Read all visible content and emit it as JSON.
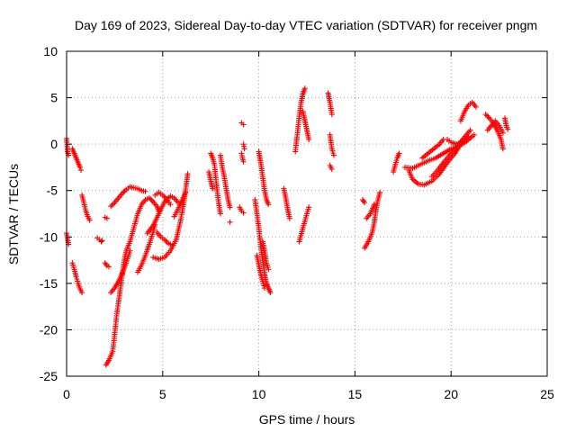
{
  "chart_data": {
    "type": "scatter",
    "title": "Day 169 of 2023, Sidereal Day-to-day VTEC variation (SDTVAR) for receiver pngm",
    "xlabel": "GPS time / hours",
    "ylabel": "SDTVAR / TECUs",
    "xlim": [
      0,
      25
    ],
    "ylim": [
      -25,
      10
    ],
    "x_ticks": [
      "0",
      "5",
      "10",
      "15",
      "20",
      "25"
    ],
    "y_ticks": [
      "10",
      "5",
      "0",
      "-5",
      "-10",
      "-15",
      "-20",
      "-25"
    ],
    "grid": true,
    "marker": "plus",
    "color": "#ff0000",
    "tracks": [
      [
        [
          0.0,
          0.6
        ],
        [
          0.05,
          -0.8
        ],
        [
          0.1,
          -1.2
        ]
      ],
      [
        [
          0.0,
          -9.6
        ],
        [
          0.05,
          -10.2
        ],
        [
          0.1,
          -10.8
        ]
      ],
      [
        [
          0.3,
          -0.5
        ],
        [
          0.4,
          -1.0
        ],
        [
          0.5,
          -1.5
        ],
        [
          0.6,
          -2.0
        ],
        [
          0.7,
          -2.5
        ],
        [
          0.75,
          -2.8
        ]
      ],
      [
        [
          0.3,
          -12.8
        ],
        [
          0.4,
          -13.5
        ],
        [
          0.5,
          -14.3
        ],
        [
          0.6,
          -15.0
        ],
        [
          0.7,
          -15.6
        ],
        [
          0.8,
          -16.0
        ]
      ],
      [
        [
          0.8,
          -5.5
        ],
        [
          0.9,
          -6.3
        ],
        [
          1.0,
          -7.2
        ],
        [
          1.1,
          -7.8
        ],
        [
          1.2,
          -8.2
        ]
      ],
      [
        [
          1.6,
          -10.1
        ],
        [
          1.7,
          -10.3
        ],
        [
          1.8,
          -10.5
        ],
        [
          1.85,
          -10.4
        ]
      ],
      [
        [
          2.0,
          -7.9
        ],
        [
          2.1,
          -8.0
        ]
      ],
      [
        [
          2.0,
          -12.8
        ],
        [
          2.1,
          -13.1
        ],
        [
          2.2,
          -13.2
        ]
      ],
      [
        [
          2.05,
          -23.8
        ],
        [
          2.2,
          -23.3
        ],
        [
          2.4,
          -22.3
        ],
        [
          2.5,
          -20.5
        ],
        [
          2.6,
          -18.5
        ],
        [
          2.7,
          -17.0
        ],
        [
          2.8,
          -15.5
        ],
        [
          2.9,
          -14.0
        ],
        [
          3.0,
          -12.5
        ],
        [
          3.1,
          -11.5
        ],
        [
          3.3,
          -10.5
        ],
        [
          3.5,
          -9.0
        ],
        [
          3.7,
          -7.5
        ],
        [
          3.9,
          -6.5
        ],
        [
          4.1,
          -6.0
        ],
        [
          4.3,
          -5.8
        ],
        [
          4.5,
          -6.2
        ],
        [
          4.7,
          -6.7
        ],
        [
          4.8,
          -7.2
        ]
      ],
      [
        [
          2.3,
          -16.0
        ],
        [
          2.5,
          -15.5
        ],
        [
          2.7,
          -14.8
        ],
        [
          2.9,
          -13.9
        ],
        [
          3.1,
          -12.8
        ],
        [
          3.3,
          -11.5
        ]
      ],
      [
        [
          2.3,
          -6.7
        ],
        [
          2.5,
          -6.3
        ],
        [
          2.7,
          -5.8
        ],
        [
          2.9,
          -5.3
        ],
        [
          3.1,
          -4.9
        ],
        [
          3.3,
          -4.6
        ],
        [
          3.5,
          -4.7
        ],
        [
          3.7,
          -4.8
        ],
        [
          3.9,
          -5.0
        ],
        [
          4.1,
          -5.1
        ]
      ],
      [
        [
          3.7,
          -13.8
        ],
        [
          3.9,
          -13.0
        ],
        [
          4.1,
          -12.0
        ],
        [
          4.3,
          -10.8
        ],
        [
          4.5,
          -9.5
        ],
        [
          4.6,
          -8.7
        ]
      ],
      [
        [
          4.2,
          -9.6
        ],
        [
          4.5,
          -8.8
        ],
        [
          4.8,
          -7.5
        ],
        [
          5.1,
          -6.2
        ],
        [
          5.4,
          -5.6
        ],
        [
          5.6,
          -5.8
        ],
        [
          5.8,
          -6.3
        ]
      ],
      [
        [
          4.6,
          -5.5
        ],
        [
          4.8,
          -5.2
        ],
        [
          5.0,
          -5.5
        ],
        [
          5.2,
          -5.9
        ],
        [
          5.4,
          -6.5
        ]
      ],
      [
        [
          4.7,
          -9.5
        ],
        [
          4.9,
          -10.0
        ],
        [
          5.1,
          -10.3
        ],
        [
          5.3,
          -10.7
        ],
        [
          5.5,
          -10.9
        ]
      ],
      [
        [
          4.5,
          -12.2
        ],
        [
          4.8,
          -12.4
        ],
        [
          5.1,
          -12.2
        ],
        [
          5.4,
          -11.5
        ],
        [
          5.7,
          -10.3
        ],
        [
          5.9,
          -8.5
        ],
        [
          6.1,
          -6.3
        ],
        [
          6.25,
          -4.0
        ],
        [
          6.3,
          -3.2
        ]
      ],
      [
        [
          5.6,
          -7.8
        ],
        [
          5.8,
          -7.0
        ],
        [
          6.0,
          -6.0
        ],
        [
          6.2,
          -5.2
        ]
      ],
      [
        [
          7.5,
          -1.0
        ],
        [
          7.6,
          -1.5
        ],
        [
          7.7,
          -2.3
        ],
        [
          7.8,
          -4.5
        ],
        [
          7.9,
          -6.2
        ],
        [
          8.0,
          -7.5
        ]
      ],
      [
        [
          7.4,
          -3.0
        ],
        [
          7.5,
          -4.0
        ],
        [
          7.6,
          -4.8
        ]
      ],
      [
        [
          8.0,
          -1.2
        ],
        [
          8.1,
          -2.5
        ],
        [
          8.2,
          -3.5
        ],
        [
          8.3,
          -4.8
        ],
        [
          8.4,
          -6.0
        ],
        [
          8.5,
          -6.8
        ]
      ],
      [
        [
          8.5,
          -8.4
        ]
      ],
      [
        [
          9.1,
          2.3
        ],
        [
          9.2,
          2.1
        ]
      ],
      [
        [
          9.0,
          -6.8
        ],
        [
          9.1,
          -7.2
        ],
        [
          9.2,
          -7.4
        ]
      ],
      [
        [
          9.1,
          -1.0
        ],
        [
          9.15,
          -1.5
        ],
        [
          9.2,
          -1.9
        ]
      ],
      [
        [
          9.2,
          0.0
        ],
        [
          9.25,
          -0.5
        ]
      ],
      [
        [
          9.8,
          -6.0
        ],
        [
          9.9,
          -7.5
        ],
        [
          10.0,
          -9.0
        ],
        [
          10.1,
          -11.0
        ],
        [
          10.2,
          -12.5
        ],
        [
          10.3,
          -14.0
        ],
        [
          10.4,
          -15.0
        ],
        [
          10.5,
          -15.5
        ],
        [
          10.6,
          -16.0
        ]
      ],
      [
        [
          9.9,
          -12.0
        ],
        [
          10.0,
          -13.0
        ],
        [
          10.1,
          -14.0
        ],
        [
          10.2,
          -14.8
        ],
        [
          10.3,
          -15.5
        ]
      ],
      [
        [
          10.0,
          -0.8
        ],
        [
          10.1,
          -2.0
        ],
        [
          10.2,
          -3.5
        ],
        [
          10.3,
          -5.0
        ],
        [
          10.4,
          -6.0
        ],
        [
          10.5,
          -6.5
        ]
      ],
      [
        [
          10.2,
          -10.5
        ],
        [
          10.3,
          -11.5
        ],
        [
          10.4,
          -12.8
        ],
        [
          10.5,
          -13.5
        ]
      ],
      [
        [
          11.3,
          -4.8
        ],
        [
          11.4,
          -5.8
        ],
        [
          11.5,
          -7.0
        ],
        [
          11.6,
          -8.0
        ]
      ],
      [
        [
          11.9,
          -0.8
        ],
        [
          12.0,
          1.0
        ],
        [
          12.1,
          3.0
        ],
        [
          12.2,
          4.5
        ],
        [
          12.3,
          5.5
        ],
        [
          12.4,
          6.0
        ]
      ],
      [
        [
          12.1,
          -10.5
        ],
        [
          12.3,
          -9.0
        ],
        [
          12.5,
          -7.5
        ],
        [
          12.6,
          -6.8
        ]
      ],
      [
        [
          12.3,
          3.5
        ],
        [
          12.4,
          2.5
        ],
        [
          12.5,
          1.5
        ],
        [
          12.6,
          0.5
        ]
      ],
      [
        [
          13.6,
          5.5
        ],
        [
          13.7,
          4.5
        ],
        [
          13.8,
          3.2
        ]
      ],
      [
        [
          13.7,
          1.0
        ],
        [
          13.8,
          -0.5
        ],
        [
          13.9,
          -1.2
        ]
      ],
      [
        [
          13.7,
          -2.3
        ],
        [
          13.8,
          -2.7
        ]
      ],
      [
        [
          15.4,
          -6.0
        ],
        [
          15.5,
          -6.3
        ]
      ],
      [
        [
          15.5,
          -11.2
        ],
        [
          15.7,
          -10.5
        ],
        [
          15.9,
          -9.5
        ],
        [
          16.0,
          -8.5
        ],
        [
          16.1,
          -7.0
        ],
        [
          16.2,
          -6.0
        ],
        [
          16.3,
          -5.2
        ]
      ],
      [
        [
          15.6,
          -8.0
        ],
        [
          15.8,
          -7.5
        ],
        [
          16.0,
          -6.5
        ]
      ],
      [
        [
          17.0,
          -3.0
        ],
        [
          17.1,
          -2.2
        ],
        [
          17.2,
          -1.5
        ],
        [
          17.3,
          -1.0
        ]
      ],
      [
        [
          17.6,
          -2.5
        ],
        [
          18.0,
          -2.6
        ],
        [
          18.4,
          -2.2
        ],
        [
          18.8,
          -1.8
        ],
        [
          19.2,
          -1.5
        ],
        [
          19.6,
          -1.0
        ],
        [
          20.0,
          -0.5
        ],
        [
          20.4,
          -0.2
        ],
        [
          20.8,
          0.3
        ],
        [
          21.2,
          1.0
        ]
      ],
      [
        [
          17.8,
          -2.8
        ],
        [
          18.0,
          -3.8
        ],
        [
          18.3,
          -4.3
        ],
        [
          18.6,
          -4.4
        ],
        [
          19.0,
          -4.0
        ],
        [
          19.4,
          -3.2
        ],
        [
          19.8,
          -2.0
        ],
        [
          20.2,
          -1.0
        ],
        [
          20.5,
          0.0
        ]
      ],
      [
        [
          18.5,
          -1.5
        ],
        [
          18.8,
          -1.0
        ],
        [
          19.1,
          -0.5
        ],
        [
          19.4,
          0.0
        ],
        [
          19.6,
          0.5
        ]
      ],
      [
        [
          19.0,
          -3.5
        ],
        [
          19.3,
          -2.8
        ],
        [
          19.6,
          -2.0
        ],
        [
          20.0,
          -1.0
        ],
        [
          20.4,
          0.0
        ],
        [
          20.8,
          1.0
        ],
        [
          21.0,
          1.5
        ]
      ],
      [
        [
          19.8,
          0.5
        ],
        [
          20.0,
          0.2
        ],
        [
          20.3,
          0.0
        ],
        [
          20.6,
          0.3
        ],
        [
          20.9,
          0.8
        ]
      ],
      [
        [
          20.5,
          2.5
        ],
        [
          20.7,
          3.5
        ],
        [
          20.9,
          4.2
        ],
        [
          21.1,
          4.5
        ],
        [
          21.3,
          4.0
        ]
      ],
      [
        [
          21.8,
          3.2
        ],
        [
          22.0,
          2.8
        ],
        [
          22.2,
          2.2
        ],
        [
          22.4,
          1.5
        ],
        [
          22.6,
          0.5
        ],
        [
          22.7,
          -0.5
        ]
      ],
      [
        [
          21.9,
          1.5
        ],
        [
          22.1,
          2.0
        ],
        [
          22.3,
          2.5
        ],
        [
          22.5,
          2.0
        ],
        [
          22.7,
          1.2
        ]
      ],
      [
        [
          22.8,
          2.8
        ],
        [
          22.85,
          2.2
        ],
        [
          22.9,
          1.8
        ],
        [
          22.95,
          1.6
        ]
      ]
    ]
  }
}
